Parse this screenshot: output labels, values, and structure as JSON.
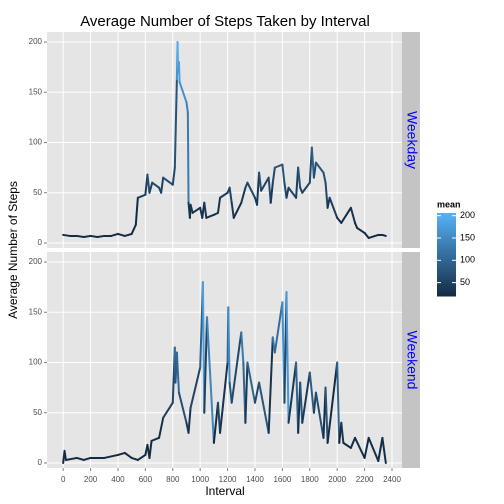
{
  "chart_data": {
    "type": "line",
    "title": "Average Number of Steps Taken by Interval",
    "xlabel": "Interval",
    "ylabel": "Average Number of Steps",
    "xlim": [
      -118,
      2473
    ],
    "xticks": [
      0,
      200,
      400,
      600,
      800,
      1000,
      1200,
      1400,
      1600,
      1800,
      2000,
      2200,
      2400
    ],
    "ylim": [
      -5,
      210
    ],
    "yticks": [
      0,
      50,
      100,
      150,
      200
    ],
    "grid": true,
    "panels": [
      {
        "name": "Weekday",
        "x": [
          0,
          50,
          100,
          150,
          200,
          250,
          300,
          350,
          400,
          450,
          500,
          530,
          545,
          600,
          615,
          630,
          650,
          700,
          715,
          730,
          800,
          815,
          830,
          835,
          840,
          845,
          850,
          900,
          910,
          915,
          925,
          930,
          945,
          1000,
          1015,
          1030,
          1045,
          1100,
          1130,
          1145,
          1200,
          1215,
          1230,
          1245,
          1300,
          1330,
          1345,
          1400,
          1415,
          1430,
          1445,
          1500,
          1515,
          1530,
          1545,
          1600,
          1615,
          1630,
          1645,
          1700,
          1715,
          1730,
          1745,
          1800,
          1815,
          1830,
          1845,
          1900,
          1915,
          1930,
          1945,
          2000,
          2030,
          2100,
          2130,
          2145,
          2200,
          2230,
          2300,
          2330,
          2355
        ],
        "values": [
          8,
          7,
          7,
          6,
          7,
          6,
          7,
          7,
          9,
          7,
          9,
          18,
          45,
          48,
          68,
          50,
          60,
          55,
          50,
          65,
          58,
          75,
          163,
          200,
          170,
          180,
          160,
          140,
          130,
          40,
          25,
          38,
          30,
          35,
          25,
          40,
          25,
          28,
          30,
          45,
          50,
          55,
          40,
          25,
          40,
          55,
          60,
          45,
          38,
          70,
          52,
          65,
          40,
          60,
          75,
          78,
          60,
          45,
          55,
          45,
          75,
          55,
          50,
          60,
          95,
          65,
          80,
          70,
          60,
          35,
          45,
          25,
          20,
          35,
          20,
          15,
          10,
          5,
          8,
          8,
          7
        ]
      },
      {
        "name": "Weekend",
        "x": [
          0,
          10,
          20,
          100,
          150,
          200,
          300,
          400,
          450,
          500,
          545,
          600,
          615,
          630,
          645,
          700,
          730,
          800,
          815,
          820,
          830,
          845,
          900,
          915,
          930,
          1000,
          1020,
          1030,
          1050,
          1100,
          1130,
          1145,
          1200,
          1205,
          1215,
          1230,
          1300,
          1315,
          1330,
          1345,
          1400,
          1430,
          1500,
          1530,
          1545,
          1600,
          1615,
          1630,
          1645,
          1700,
          1715,
          1730,
          1745,
          1800,
          1830,
          1845,
          1900,
          1915,
          1930,
          2000,
          2015,
          2030,
          2045,
          2100,
          2130,
          2200,
          2230,
          2300,
          2330,
          2355
        ],
        "values": [
          0,
          12,
          3,
          5,
          3,
          5,
          5,
          8,
          10,
          5,
          3,
          8,
          18,
          5,
          22,
          25,
          45,
          60,
          115,
          80,
          110,
          70,
          40,
          30,
          55,
          95,
          180,
          50,
          145,
          20,
          60,
          30,
          100,
          155,
          80,
          60,
          130,
          100,
          40,
          100,
          60,
          80,
          30,
          125,
          110,
          160,
          60,
          170,
          40,
          100,
          30,
          80,
          40,
          90,
          50,
          70,
          25,
          75,
          20,
          100,
          20,
          40,
          20,
          15,
          25,
          5,
          25,
          2,
          25,
          0
        ]
      }
    ],
    "color_scale": {
      "title": "mean",
      "low": "#132B43",
      "high": "#56B1F7",
      "limits": [
        20,
        206
      ],
      "ticks": [
        50,
        100,
        150,
        200
      ]
    }
  }
}
